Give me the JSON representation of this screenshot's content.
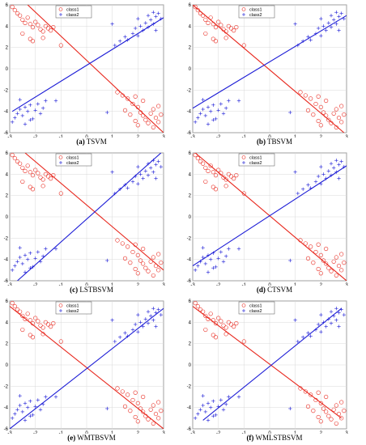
{
  "colors": {
    "class1": "#e8271d",
    "class2": "#1c1cd6",
    "grid": "#d9d9d9",
    "axis": "#000000"
  },
  "chart_data": [
    {
      "type": "scatter",
      "caption_letter": "(a)",
      "caption_name": "TSVM",
      "xlim": [
        -3,
        3
      ],
      "ylim": [
        -6,
        6
      ],
      "xticks": [
        "-3",
        "-2",
        "-1",
        "0",
        "1",
        "2",
        "3"
      ],
      "yticks": [
        "-6",
        "-4",
        "-2",
        "0",
        "2",
        "4",
        "6"
      ],
      "legend": [
        "class1",
        "class2"
      ],
      "lines": [
        {
          "series": "class1",
          "x": [
            -2.3,
            3
          ],
          "y": [
            6.0,
            -6.0
          ]
        },
        {
          "series": "class2",
          "x": [
            -2.9,
            3
          ],
          "y": [
            -4.0,
            4.8
          ]
        }
      ]
    },
    {
      "type": "scatter",
      "caption_letter": "(b)",
      "caption_name": "TBSVM",
      "xlim": [
        -3,
        3
      ],
      "ylim": [
        -6,
        6
      ],
      "xticks": [
        "-3",
        "-2",
        "-1",
        "0",
        "1",
        "2",
        "3"
      ],
      "yticks": [
        "-6",
        "-4",
        "-2",
        "0",
        "2",
        "4",
        "6"
      ],
      "legend": [
        "class1",
        "class2"
      ],
      "lines": [
        {
          "series": "class1",
          "x": [
            -3,
            2.9
          ],
          "y": [
            6.0,
            -6.0
          ]
        },
        {
          "series": "class2",
          "x": [
            -3,
            3
          ],
          "y": [
            -3.7,
            5.0
          ]
        }
      ]
    },
    {
      "type": "scatter",
      "caption_letter": "(c)",
      "caption_name": "LSTBSVM",
      "xlim": [
        -3,
        3
      ],
      "ylim": [
        -6,
        6
      ],
      "xticks": [
        "-3",
        "-2",
        "-1",
        "0",
        "1",
        "2",
        "3"
      ],
      "yticks": [
        "-6",
        "-4",
        "-2",
        "0",
        "2",
        "4",
        "6"
      ],
      "legend": [
        "class1",
        "class2"
      ],
      "lines": [
        {
          "series": "class1",
          "x": [
            -2.4,
            3
          ],
          "y": [
            6.0,
            -5.0
          ]
        },
        {
          "series": "class2",
          "x": [
            -2.7,
            2.9
          ],
          "y": [
            -6.0,
            6.0
          ]
        }
      ]
    },
    {
      "type": "scatter",
      "caption_letter": "(d)",
      "caption_name": "CTSVM",
      "xlim": [
        -3,
        3
      ],
      "ylim": [
        -6,
        6
      ],
      "xticks": [
        "-3",
        "-2",
        "-1",
        "0",
        "1",
        "2",
        "3"
      ],
      "yticks": [
        "-6",
        "-4",
        "-2",
        "0",
        "2",
        "4",
        "6"
      ],
      "legend": [
        "class1",
        "class2"
      ],
      "lines": [
        {
          "series": "class1",
          "x": [
            -2.9,
            3
          ],
          "y": [
            6.0,
            -6.0
          ]
        },
        {
          "series": "class2",
          "x": [
            -3,
            3
          ],
          "y": [
            -4.6,
            4.8
          ]
        }
      ]
    },
    {
      "type": "scatter",
      "caption_letter": "(e)",
      "caption_name": "WMTBSVM",
      "xlim": [
        -3,
        3
      ],
      "ylim": [
        -6,
        6
      ],
      "xticks": [
        "-3",
        "-2",
        "-1",
        "0",
        "1",
        "2",
        "3"
      ],
      "yticks": [
        "-6",
        "-4",
        "-2",
        "0",
        "2",
        "4",
        "6"
      ],
      "legend": [
        "class1",
        "class2"
      ],
      "lines": [
        {
          "series": "class1",
          "x": [
            -3,
            3
          ],
          "y": [
            5.5,
            -6.0
          ]
        },
        {
          "series": "class2",
          "x": [
            -3,
            3
          ],
          "y": [
            -6.0,
            5.3
          ]
        }
      ]
    },
    {
      "type": "scatter",
      "caption_letter": "(f)",
      "caption_name": "WMLSTBSVM",
      "xlim": [
        -3,
        3
      ],
      "ylim": [
        -6,
        6
      ],
      "xticks": [
        "-3",
        "-2",
        "-1",
        "0",
        "1",
        "2",
        "3"
      ],
      "yticks": [
        "-6",
        "-4",
        "-2",
        "0",
        "2",
        "4",
        "6"
      ],
      "legend": [
        "class1",
        "class2"
      ],
      "lines": [
        {
          "series": "class1",
          "x": [
            -3,
            2.8
          ],
          "y": [
            5.5,
            -5.0
          ]
        },
        {
          "series": "class2",
          "x": [
            -2.6,
            2.8
          ],
          "y": [
            -5.2,
            5.3
          ]
        }
      ]
    }
  ],
  "points": {
    "class1": [
      [
        -2.9,
        5.8
      ],
      [
        -2.8,
        5.5
      ],
      [
        -2.7,
        5.2
      ],
      [
        -2.6,
        5.0
      ],
      [
        -2.5,
        4.6
      ],
      [
        -2.4,
        4.3
      ],
      [
        -2.3,
        4.8
      ],
      [
        -2.2,
        4.2
      ],
      [
        -2.1,
        3.9
      ],
      [
        -2.0,
        4.4
      ],
      [
        -1.9,
        4.1
      ],
      [
        -1.8,
        3.7
      ],
      [
        -1.7,
        3.5
      ],
      [
        -1.6,
        4.0
      ],
      [
        -1.5,
        3.8
      ],
      [
        -1.4,
        3.6
      ],
      [
        -2.2,
        2.8
      ],
      [
        -2.1,
        2.6
      ],
      [
        -1.7,
        2.9
      ],
      [
        -1.0,
        2.2
      ],
      [
        -1.3,
        3.9
      ],
      [
        -2.5,
        3.3
      ],
      [
        1.2,
        -2.2
      ],
      [
        1.4,
        -2.5
      ],
      [
        1.6,
        -2.8
      ],
      [
        1.8,
        -3.3
      ],
      [
        2.0,
        -3.6
      ],
      [
        2.1,
        -4.1
      ],
      [
        2.2,
        -4.4
      ],
      [
        2.3,
        -4.8
      ],
      [
        2.4,
        -5.1
      ],
      [
        2.5,
        -4.2
      ],
      [
        2.6,
        -3.8
      ],
      [
        2.7,
        -4.6
      ],
      [
        2.8,
        -5.0
      ],
      [
        2.9,
        -4.3
      ],
      [
        1.5,
        -3.9
      ],
      [
        1.7,
        -4.3
      ],
      [
        1.9,
        -4.9
      ],
      [
        2.0,
        -5.3
      ],
      [
        2.6,
        -5.5
      ],
      [
        2.8,
        -3.5
      ],
      [
        1.9,
        -2.6
      ],
      [
        2.2,
        -3.0
      ]
    ],
    "class2": [
      [
        -2.9,
        -5.0
      ],
      [
        -2.8,
        -4.6
      ],
      [
        -2.7,
        -4.2
      ],
      [
        -2.6,
        -3.8
      ],
      [
        -2.5,
        -4.4
      ],
      [
        -2.4,
        -3.6
      ],
      [
        -2.3,
        -4.0
      ],
      [
        -2.2,
        -3.4
      ],
      [
        -2.1,
        -4.7
      ],
      [
        -2.0,
        -3.9
      ],
      [
        -1.9,
        -3.3
      ],
      [
        -1.8,
        -4.2
      ],
      [
        -1.7,
        -3.7
      ],
      [
        -1.6,
        -3.0
      ],
      [
        -2.6,
        -2.9
      ],
      [
        -1.2,
        -3.0
      ],
      [
        -2.4,
        -5.2
      ],
      [
        -2.2,
        -4.8
      ],
      [
        1.1,
        2.2
      ],
      [
        1.3,
        2.6
      ],
      [
        1.5,
        3.0
      ],
      [
        1.6,
        2.7
      ],
      [
        1.8,
        3.3
      ],
      [
        1.9,
        3.8
      ],
      [
        2.0,
        3.1
      ],
      [
        2.1,
        4.0
      ],
      [
        2.2,
        3.6
      ],
      [
        2.3,
        4.3
      ],
      [
        2.4,
        3.9
      ],
      [
        2.5,
        4.6
      ],
      [
        2.6,
        4.2
      ],
      [
        2.7,
        4.9
      ],
      [
        2.8,
        5.2
      ],
      [
        2.9,
        4.7
      ],
      [
        2.4,
        5.0
      ],
      [
        2.6,
        5.3
      ],
      [
        0.8,
        -4.1
      ],
      [
        1.0,
        4.2
      ],
      [
        2.0,
        4.7
      ],
      [
        2.7,
        3.6
      ]
    ]
  }
}
